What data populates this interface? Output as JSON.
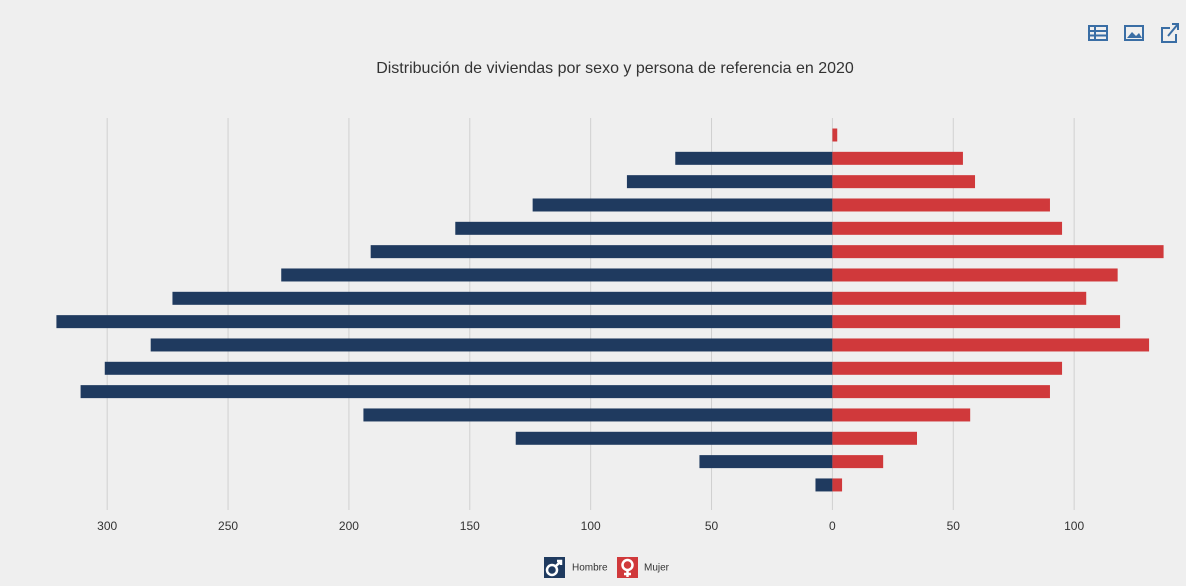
{
  "chart_data": {
    "type": "bar",
    "orientation": "horizontal",
    "stacked": true,
    "title": "Distribución de viviendas por sexo y persona de referencia en 2020",
    "categories": [
      null,
      null,
      null,
      null,
      null,
      null,
      null,
      null,
      null,
      null,
      null,
      null,
      null,
      null,
      null,
      null
    ],
    "series": [
      {
        "name": "Hombre",
        "color": "#1f3a5f",
        "values": [
          0,
          -65,
          -85,
          -124,
          -156,
          -191,
          -228,
          -273,
          -321,
          -282,
          -301,
          -311,
          -194,
          -131,
          -55,
          -7
        ]
      },
      {
        "name": "Mujer",
        "color": "#d0393b",
        "values": [
          2,
          54,
          59,
          90,
          95,
          137,
          118,
          105,
          119,
          131,
          95,
          90,
          57,
          35,
          21,
          4
        ]
      }
    ],
    "xlim": [
      -322,
      138
    ],
    "xticks": [
      {
        "value": -300,
        "label": "300"
      },
      {
        "value": -250,
        "label": "250"
      },
      {
        "value": -200,
        "label": "200"
      },
      {
        "value": -150,
        "label": "150"
      },
      {
        "value": -100,
        "label": "100"
      },
      {
        "value": -50,
        "label": "50"
      },
      0,
      50,
      100
    ],
    "grid": true,
    "legend": "bottom"
  }
}
